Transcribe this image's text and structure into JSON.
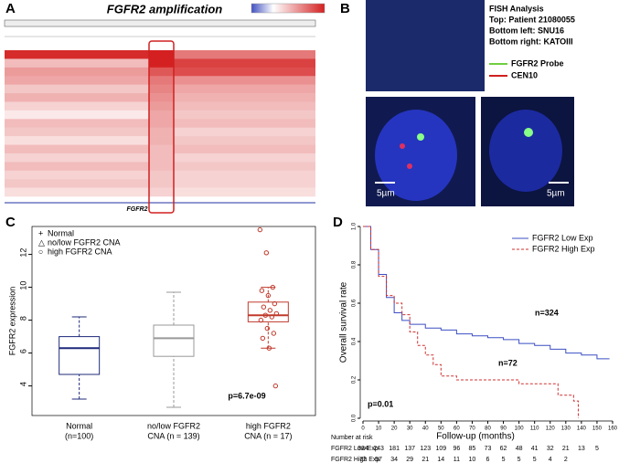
{
  "panel_labels": [
    "A",
    "B",
    "C",
    "D"
  ],
  "fish": {
    "title": "FISH Analysis",
    "lines": [
      "Top: Patient 21080055",
      "Bottom left: SNU16",
      "Bottom right: KATOIII"
    ],
    "legend": [
      {
        "name": "FGFR2 Probe",
        "color": "#6fcf3f"
      },
      {
        "name": "CEN10",
        "color": "#d02020"
      }
    ],
    "scale": "5µm"
  },
  "chart_data": [
    {
      "type": "heatmap",
      "title": "FGFR2 amplification",
      "gene": "FGFR2",
      "color": "#d42020",
      "rows": [
        [
          0.95,
          1.0,
          0.6
        ],
        [
          0.3,
          1.0,
          0.85
        ],
        [
          0.45,
          0.75,
          0.8
        ],
        [
          0.4,
          0.6,
          0.5
        ],
        [
          0.25,
          0.55,
          0.4
        ],
        [
          0.35,
          0.5,
          0.35
        ],
        [
          0.2,
          0.45,
          0.3
        ],
        [
          0.1,
          0.4,
          0.25
        ],
        [
          0.3,
          0.4,
          0.3
        ],
        [
          0.25,
          0.35,
          0.2
        ],
        [
          0.15,
          0.35,
          0.25
        ],
        [
          0.3,
          0.3,
          0.3
        ],
        [
          0.2,
          0.3,
          0.2
        ],
        [
          0.3,
          0.3,
          0.25
        ],
        [
          0.2,
          0.25,
          0.2
        ],
        [
          0.25,
          0.25,
          0.2
        ],
        [
          0.15,
          0.2,
          0.15
        ]
      ]
    },
    {
      "type": "box",
      "ylabel": "FGFR2 expression",
      "ylim": [
        2.2,
        13.7
      ],
      "yticks": [
        4,
        6,
        8,
        10,
        12
      ],
      "categories": [
        [
          "Normal",
          "(n=100)"
        ],
        [
          "no/low FGFR2",
          "CNA (n = 139)"
        ],
        [
          "high FGFR2",
          "CNA (n = 17)"
        ]
      ],
      "series": [
        {
          "name": "Normal",
          "color": "#1f2a7a",
          "box": {
            "min": 3.2,
            "q1": 4.7,
            "median": 6.3,
            "q3": 7.0,
            "max": 8.2
          }
        },
        {
          "name": "no/low FGFR2 CNA",
          "color": "#999999",
          "box": {
            "min": 2.7,
            "q1": 5.8,
            "median": 6.9,
            "q3": 7.7,
            "max": 9.7
          }
        },
        {
          "name": "high FGFR2 CNA",
          "color": "#c0392b",
          "box": {
            "min": 6.3,
            "q1": 7.9,
            "median": 8.3,
            "q3": 9.1,
            "max": 10.0
          },
          "values": [
            13.5,
            12.1,
            10.0,
            9.8,
            9.5,
            9.0,
            8.8,
            8.6,
            8.4,
            8.3,
            8.2,
            8.0,
            7.5,
            7.2,
            6.9,
            6.3,
            4.0
          ]
        }
      ],
      "annotation": "p=6.7e-09"
    },
    {
      "type": "line",
      "xlabel": "Follow-up (months)",
      "ylabel": "Overall survival rate",
      "xlim": [
        0,
        160
      ],
      "xticks": [
        0,
        10,
        20,
        30,
        40,
        50,
        60,
        70,
        80,
        90,
        100,
        110,
        120,
        130,
        140,
        150,
        160
      ],
      "ylim": [
        0,
        1
      ],
      "yticks": [
        {
          "value": 0,
          "label": "0.0"
        },
        {
          "value": 0.2,
          "label": "0.2"
        },
        {
          "value": 0.4,
          "label": "0.4"
        },
        {
          "value": 0.6,
          "label": "0.6"
        },
        {
          "value": 0.8,
          "label": "0.8"
        },
        {
          "value": 1,
          "label": "1.0"
        }
      ],
      "legend": "upper right",
      "series": [
        {
          "name": "FGFR2 Low Exp",
          "color": "#3b4fc4",
          "dash": false,
          "x": [
            0,
            5,
            10,
            15,
            20,
            25,
            30,
            40,
            50,
            60,
            70,
            80,
            90,
            100,
            110,
            120,
            130,
            140,
            150,
            158
          ],
          "values": [
            1,
            0.88,
            0.75,
            0.63,
            0.55,
            0.51,
            0.49,
            0.47,
            0.46,
            0.44,
            0.43,
            0.42,
            0.41,
            0.39,
            0.38,
            0.36,
            0.34,
            0.33,
            0.31,
            0.31
          ],
          "label": "n=324",
          "at_risk": [
            324,
            243,
            181,
            137,
            123,
            109,
            96,
            85,
            73,
            62,
            48,
            41,
            32,
            21,
            13,
            5
          ]
        },
        {
          "name": "FGFR2 High Exp",
          "color": "#d03030",
          "dash": true,
          "x": [
            0,
            5,
            10,
            15,
            20,
            25,
            30,
            35,
            40,
            45,
            50,
            60,
            80,
            100,
            120,
            125,
            135,
            138
          ],
          "values": [
            1,
            0.88,
            0.74,
            0.64,
            0.6,
            0.54,
            0.45,
            0.38,
            0.33,
            0.28,
            0.22,
            0.2,
            0.2,
            0.18,
            0.18,
            0.12,
            0.09,
            0
          ],
          "label": "n=72",
          "at_risk": [
            72,
            57,
            34,
            29,
            21,
            14,
            11,
            10,
            6,
            5,
            5,
            5,
            4,
            2
          ]
        }
      ],
      "annotation": "p=0.01",
      "at_risk_title": "Number at risk"
    }
  ]
}
